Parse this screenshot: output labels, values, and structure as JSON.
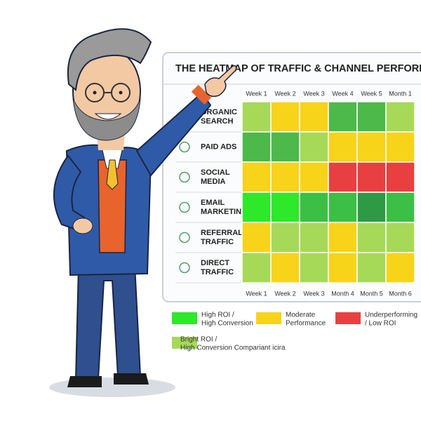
{
  "heatmap": {
    "title": "THE HEATMAP OF TRAFFIC & CHANNEL PERFORMANCE",
    "columns_top": [
      "Week 1",
      "Week 2",
      "Week 3",
      "Week 4",
      "Week 5",
      "Month 1"
    ],
    "columns_bottom": [
      "Week 1",
      "Week 2",
      "Week 3",
      "Month 4",
      "Month 5",
      "Month 6"
    ],
    "rows": [
      {
        "label": [
          "ORGANIC",
          "SEARCH"
        ],
        "cells": [
          "#a6d957",
          "#f7d31a",
          "#f7d31a",
          "#4cb94a",
          "#4cb94a",
          "#a6d957"
        ]
      },
      {
        "label": [
          "PAID ADS"
        ],
        "cells": [
          "#4cb94a",
          "#4cb94a",
          "#a6d957",
          "#f7d31a",
          "#f7d31a",
          "#f7d31a"
        ]
      },
      {
        "label": [
          "SOCIAL",
          "MEDIA"
        ],
        "cells": [
          "#f7d31a",
          "#f7d31a",
          "#f7d31a",
          "#e84040",
          "#e84040",
          "#e84040"
        ]
      },
      {
        "label": [
          "EMAIL",
          "MARKETING"
        ],
        "cells": [
          "#2ee82a",
          "#2ee82a",
          "#3cbf45",
          "#3cbf45",
          "#2e9a45",
          "#3cbf45"
        ]
      },
      {
        "label": [
          "REFERRAL",
          "TRAFFIC"
        ],
        "cells": [
          "#f7d31a",
          "#a6d957",
          "#a6d957",
          "#f7d31a",
          "#a6d957",
          "#a6d957"
        ]
      },
      {
        "label": [
          "DIRECT",
          "TRAFFIC"
        ],
        "cells": [
          "#a6d957",
          "#f7d31a",
          "#a6d957",
          "#f7d31a",
          "#a6d957",
          "#f7d31a"
        ]
      }
    ],
    "legend": [
      {
        "label": [
          "High ROI /",
          "High Conversion"
        ],
        "color": "#2ee82a"
      },
      {
        "label": [
          "Moderate",
          "Performance"
        ],
        "color": "#f7d31a"
      },
      {
        "label": [
          "Underperforming",
          "/ Low ROI"
        ],
        "color": "#e84040"
      },
      {
        "label": [
          "Bright ROI /",
          "High Conversion Compariant icira"
        ],
        "color": "#a6d957"
      }
    ]
  }
}
